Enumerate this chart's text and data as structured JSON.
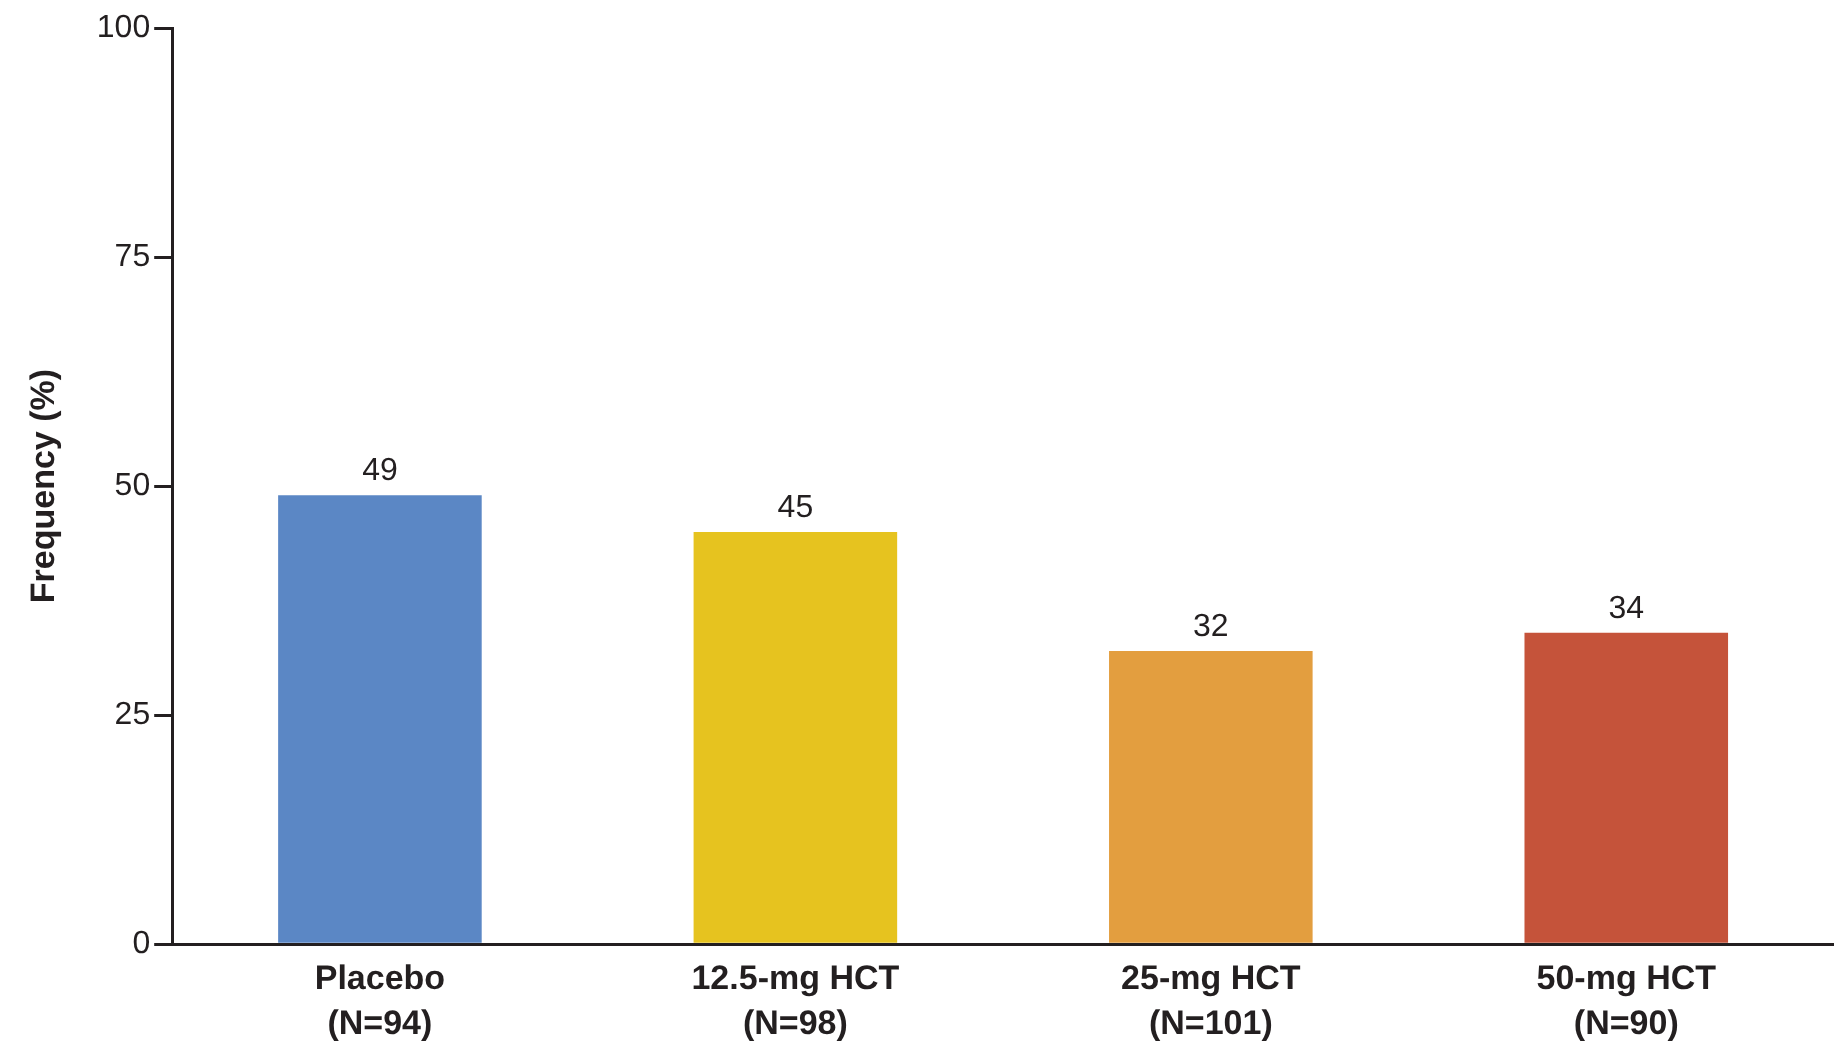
{
  "chart_data": {
    "type": "bar",
    "ylabel": "Frequency (%)",
    "categories": [
      "Placebo\n(N=94)",
      "12.5-mg HCT\n(N=98)",
      "25-mg HCT\n(N=101)",
      "50-mg HCT\n(N=90)"
    ],
    "values": [
      49,
      45,
      32,
      34
    ],
    "colors": [
      "#5b87c5",
      "#e6c31f",
      "#e39e3f",
      "#c5533a"
    ],
    "ylim": [
      0,
      100
    ],
    "yticks": [
      0,
      25,
      50,
      75,
      100
    ],
    "data_labels": true
  }
}
